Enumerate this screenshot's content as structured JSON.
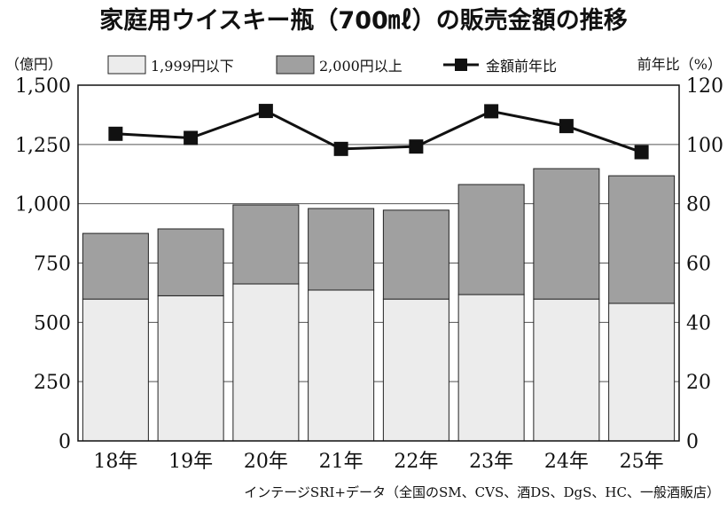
{
  "chart_data": {
    "type": "bar",
    "stacked": true,
    "title": "家庭用ウイスキー瓶（700㎖）の販売金額の推移",
    "ylabel": "（億円）",
    "y2label": "前年比（%）",
    "categories": [
      "18年",
      "19年",
      "20年",
      "21年",
      "22年",
      "23年",
      "24年",
      "25年"
    ],
    "ylim": [
      0,
      1500
    ],
    "yticks": [
      0,
      250,
      500,
      750,
      1000,
      1250,
      1500
    ],
    "ytick_labels": [
      "0",
      "250",
      "500",
      "750",
      "1,000",
      "1,250",
      "1,500"
    ],
    "y2lim": [
      0,
      120
    ],
    "y2ticks": [
      0,
      20,
      40,
      60,
      80,
      100,
      120
    ],
    "series": [
      {
        "name": "1,999円以下",
        "type": "bar",
        "color": "#ececec",
        "values": [
          598,
          612,
          662,
          636,
          598,
          617,
          598,
          580
        ]
      },
      {
        "name": "2,000円以上",
        "type": "bar",
        "color": "#a0a0a0",
        "values": [
          277,
          282,
          333,
          344,
          375,
          464,
          550,
          538
        ]
      },
      {
        "name": "金額前年比",
        "type": "line",
        "axis": "right",
        "color": "#111111",
        "values": [
          103.6,
          102.2,
          111.3,
          98.5,
          99.3,
          111.2,
          106.2,
          97.4
        ]
      }
    ],
    "grid": true,
    "legend": "top",
    "source": "インテージSRI+データ（全国のSM、CVS、酒DS、DgS、HC、一般酒販店）"
  }
}
